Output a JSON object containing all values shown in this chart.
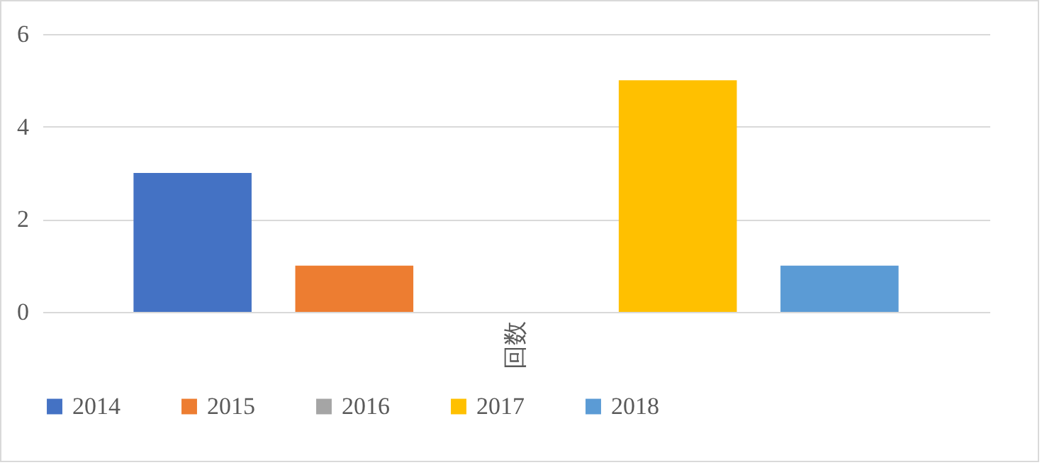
{
  "chart_data": {
    "type": "bar",
    "categories": [
      "回数"
    ],
    "series": [
      {
        "name": "2014",
        "color": "#4472c4",
        "values": [
          3
        ]
      },
      {
        "name": "2015",
        "color": "#ed7d31",
        "values": [
          1
        ]
      },
      {
        "name": "2016",
        "color": "#a5a5a5",
        "values": [
          0
        ]
      },
      {
        "name": "2017",
        "color": "#ffc000",
        "values": [
          5
        ]
      },
      {
        "name": "2018",
        "color": "#5b9bd5",
        "values": [
          1
        ]
      }
    ],
    "ylim": [
      0,
      6
    ],
    "yticks": [
      0,
      2,
      4,
      6
    ],
    "grid": "y",
    "legend": "bottom"
  }
}
